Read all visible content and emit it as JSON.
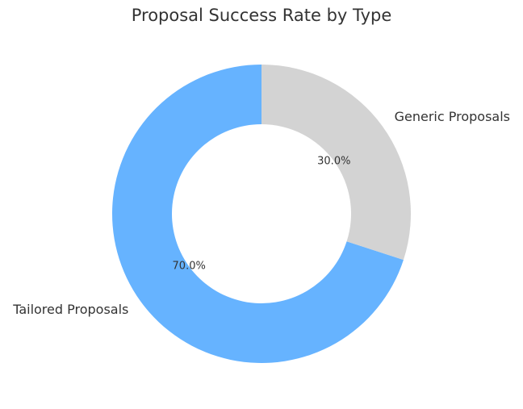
{
  "chart_data": {
    "type": "pie",
    "title": "Proposal Success Rate by Type",
    "categories": [
      "Tailored Proposals",
      "Generic Proposals"
    ],
    "values": [
      70,
      30
    ],
    "value_labels": [
      "70.0%",
      "30.0%"
    ],
    "colors": [
      "#66b3ff",
      "#d3d3d3"
    ]
  }
}
